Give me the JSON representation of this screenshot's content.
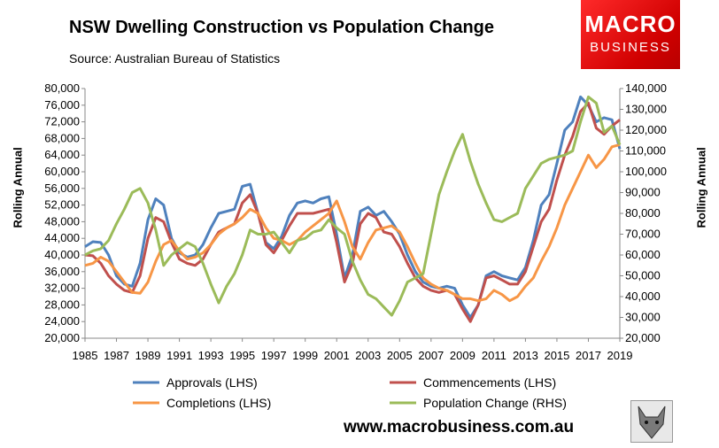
{
  "header": {
    "title": "NSW Dwelling Construction vs Population Change",
    "subtitle": "Source: Australian Bureau of Statistics",
    "logo_line1": "MACRO",
    "logo_line2": "BUSINESS",
    "url": "www.macrobusiness.com.au"
  },
  "chart_data": {
    "type": "line",
    "ylabel_left": "Rolling Annual",
    "ylabel_right": "Rolling Annual",
    "ylim_left": [
      20000,
      80000
    ],
    "ylim_right": [
      20000,
      140000
    ],
    "xlim": [
      1985,
      2019
    ],
    "yticks_left": [
      "80,000",
      "76,000",
      "72,000",
      "68,000",
      "64,000",
      "60,000",
      "56,000",
      "52,000",
      "48,000",
      "44,000",
      "40,000",
      "36,000",
      "32,000",
      "28,000",
      "24,000",
      "20,000"
    ],
    "yticks_right": [
      "140,000",
      "130,000",
      "120,000",
      "110,000",
      "100,000",
      "90,000",
      "80,000",
      "70,000",
      "60,000",
      "50,000",
      "40,000",
      "30,000",
      "20,000"
    ],
    "xticks": [
      "1985",
      "1987",
      "1989",
      "1991",
      "1993",
      "1995",
      "1997",
      "1999",
      "2001",
      "2003",
      "2005",
      "2007",
      "2009",
      "2011",
      "2013",
      "2015",
      "2017",
      "2019"
    ],
    "grid": false,
    "legend_position": "bottom",
    "series": [
      {
        "name": "Approvals (LHS)",
        "axis": "left",
        "color": "#4f81bd",
        "points": [
          [
            1985,
            42000
          ],
          [
            1985.5,
            43200
          ],
          [
            1986,
            43000
          ],
          [
            1986.5,
            40000
          ],
          [
            1987,
            35000
          ],
          [
            1987.5,
            33000
          ],
          [
            1988,
            32500
          ],
          [
            1988.5,
            38000
          ],
          [
            1989,
            48500
          ],
          [
            1989.5,
            53500
          ],
          [
            1990,
            52000
          ],
          [
            1990.5,
            44000
          ],
          [
            1991,
            40500
          ],
          [
            1991.5,
            39500
          ],
          [
            1992,
            40000
          ],
          [
            1992.5,
            42500
          ],
          [
            1993,
            46500
          ],
          [
            1993.5,
            50000
          ],
          [
            1994,
            50500
          ],
          [
            1994.5,
            51000
          ],
          [
            1995,
            56500
          ],
          [
            1995.5,
            57000
          ],
          [
            1996,
            50000
          ],
          [
            1996.5,
            43000
          ],
          [
            1997,
            41500
          ],
          [
            1997.5,
            44500
          ],
          [
            1998,
            49500
          ],
          [
            1998.5,
            52500
          ],
          [
            1999,
            53000
          ],
          [
            1999.5,
            52500
          ],
          [
            2000,
            53500
          ],
          [
            2000.5,
            54000
          ],
          [
            2001,
            45000
          ],
          [
            2001.5,
            34500
          ],
          [
            2002,
            40000
          ],
          [
            2002.5,
            50500
          ],
          [
            2003,
            51500
          ],
          [
            2003.5,
            49500
          ],
          [
            2004,
            50500
          ],
          [
            2004.5,
            48000
          ],
          [
            2005,
            45000
          ],
          [
            2005.5,
            40000
          ],
          [
            2006,
            36000
          ],
          [
            2006.5,
            33500
          ],
          [
            2007,
            32500
          ],
          [
            2007.5,
            32000
          ],
          [
            2008,
            32500
          ],
          [
            2008.5,
            32000
          ],
          [
            2009,
            28000
          ],
          [
            2009.5,
            25000
          ],
          [
            2010,
            28000
          ],
          [
            2010.5,
            35000
          ],
          [
            2011,
            36000
          ],
          [
            2011.5,
            35000
          ],
          [
            2012,
            34500
          ],
          [
            2012.5,
            34000
          ],
          [
            2013,
            37000
          ],
          [
            2013.5,
            43500
          ],
          [
            2014,
            52000
          ],
          [
            2014.5,
            54500
          ],
          [
            2015,
            62000
          ],
          [
            2015.5,
            70000
          ],
          [
            2016,
            72000
          ],
          [
            2016.5,
            78000
          ],
          [
            2017,
            76000
          ],
          [
            2017.5,
            72000
          ],
          [
            2018,
            73000
          ],
          [
            2018.5,
            72500
          ],
          [
            2019,
            65500
          ]
        ]
      },
      {
        "name": "Commencements (LHS)",
        "axis": "left",
        "color": "#c0504d",
        "points": [
          [
            1985,
            40000
          ],
          [
            1985.5,
            39800
          ],
          [
            1986,
            38000
          ],
          [
            1986.5,
            35000
          ],
          [
            1987,
            33000
          ],
          [
            1987.5,
            31500
          ],
          [
            1988,
            31000
          ],
          [
            1988.5,
            35000
          ],
          [
            1989,
            44000
          ],
          [
            1989.5,
            49000
          ],
          [
            1990,
            48000
          ],
          [
            1990.5,
            43000
          ],
          [
            1991,
            39000
          ],
          [
            1991.5,
            38000
          ],
          [
            1992,
            37500
          ],
          [
            1992.5,
            39000
          ],
          [
            1993,
            42500
          ],
          [
            1993.5,
            45500
          ],
          [
            1994,
            46500
          ],
          [
            1994.5,
            47500
          ],
          [
            1995,
            52500
          ],
          [
            1995.5,
            54500
          ],
          [
            1996,
            50000
          ],
          [
            1996.5,
            42500
          ],
          [
            1997,
            40500
          ],
          [
            1997.5,
            43500
          ],
          [
            1998,
            47000
          ],
          [
            1998.5,
            50000
          ],
          [
            1999,
            50000
          ],
          [
            1999.5,
            50000
          ],
          [
            2000,
            50500
          ],
          [
            2000.5,
            51000
          ],
          [
            2001,
            43000
          ],
          [
            2001.5,
            33500
          ],
          [
            2002,
            38000
          ],
          [
            2002.5,
            47500
          ],
          [
            2003,
            50000
          ],
          [
            2003.5,
            49000
          ],
          [
            2004,
            45500
          ],
          [
            2004.5,
            45000
          ],
          [
            2005,
            42000
          ],
          [
            2005.5,
            38000
          ],
          [
            2006,
            34500
          ],
          [
            2006.5,
            32500
          ],
          [
            2007,
            31500
          ],
          [
            2007.5,
            31000
          ],
          [
            2008,
            31500
          ],
          [
            2008.5,
            30500
          ],
          [
            2009,
            27000
          ],
          [
            2009.5,
            24000
          ],
          [
            2010,
            28000
          ],
          [
            2010.5,
            34500
          ],
          [
            2011,
            35000
          ],
          [
            2011.5,
            34000
          ],
          [
            2012,
            33000
          ],
          [
            2012.5,
            33000
          ],
          [
            2013,
            36000
          ],
          [
            2013.5,
            42000
          ],
          [
            2014,
            48000
          ],
          [
            2014.5,
            51000
          ],
          [
            2015,
            58000
          ],
          [
            2015.5,
            64000
          ],
          [
            2016,
            68500
          ],
          [
            2016.5,
            74500
          ],
          [
            2017,
            76500
          ],
          [
            2017.5,
            70500
          ],
          [
            2018,
            69000
          ],
          [
            2018.5,
            71000
          ],
          [
            2019,
            72500
          ]
        ]
      },
      {
        "name": "Completions (LHS)",
        "axis": "left",
        "color": "#f79646",
        "points": [
          [
            1985,
            37500
          ],
          [
            1985.5,
            38000
          ],
          [
            1986,
            39500
          ],
          [
            1986.5,
            38500
          ],
          [
            1987,
            36000
          ],
          [
            1987.5,
            33500
          ],
          [
            1988,
            31000
          ],
          [
            1988.5,
            30800
          ],
          [
            1989,
            33500
          ],
          [
            1989.5,
            38500
          ],
          [
            1990,
            42500
          ],
          [
            1990.5,
            43500
          ],
          [
            1991,
            41000
          ],
          [
            1991.5,
            39000
          ],
          [
            1992,
            39500
          ],
          [
            1992.5,
            40500
          ],
          [
            1993,
            42500
          ],
          [
            1993.5,
            45000
          ],
          [
            1994,
            46500
          ],
          [
            1994.5,
            47500
          ],
          [
            1995,
            49000
          ],
          [
            1995.5,
            51000
          ],
          [
            1996,
            50000
          ],
          [
            1996.5,
            46500
          ],
          [
            1997,
            44000
          ],
          [
            1997.5,
            43500
          ],
          [
            1998,
            42500
          ],
          [
            1998.5,
            43500
          ],
          [
            1999,
            45500
          ],
          [
            1999.5,
            47000
          ],
          [
            2000,
            48500
          ],
          [
            2000.5,
            50000
          ],
          [
            2001,
            53000
          ],
          [
            2001.5,
            48000
          ],
          [
            2002,
            42000
          ],
          [
            2002.5,
            39000
          ],
          [
            2003,
            43000
          ],
          [
            2003.5,
            46000
          ],
          [
            2004,
            46500
          ],
          [
            2004.5,
            47000
          ],
          [
            2005,
            45500
          ],
          [
            2005.5,
            42000
          ],
          [
            2006,
            38000
          ],
          [
            2006.5,
            34500
          ],
          [
            2007,
            33000
          ],
          [
            2007.5,
            32000
          ],
          [
            2008,
            31500
          ],
          [
            2008.5,
            30500
          ],
          [
            2009,
            29500
          ],
          [
            2009.5,
            29500
          ],
          [
            2010,
            29000
          ],
          [
            2010.5,
            29500
          ],
          [
            2011,
            31500
          ],
          [
            2011.5,
            30500
          ],
          [
            2012,
            29000
          ],
          [
            2012.5,
            30000
          ],
          [
            2013,
            32500
          ],
          [
            2013.5,
            34500
          ],
          [
            2014,
            38500
          ],
          [
            2014.5,
            42000
          ],
          [
            2015,
            46500
          ],
          [
            2015.5,
            52000
          ],
          [
            2016,
            56000
          ],
          [
            2016.5,
            60000
          ],
          [
            2017,
            64000
          ],
          [
            2017.5,
            61000
          ],
          [
            2018,
            63000
          ],
          [
            2018.5,
            66000
          ],
          [
            2019,
            66500
          ]
        ]
      },
      {
        "name": "Population Change (RHS)",
        "axis": "right",
        "color": "#9bbb59",
        "points": [
          [
            1985,
            60000
          ],
          [
            1985.5,
            62000
          ],
          [
            1986,
            63000
          ],
          [
            1986.5,
            67000
          ],
          [
            1987,
            75000
          ],
          [
            1987.5,
            82000
          ],
          [
            1988,
            90000
          ],
          [
            1988.5,
            92000
          ],
          [
            1989,
            85000
          ],
          [
            1989.5,
            72000
          ],
          [
            1990,
            55000
          ],
          [
            1990.5,
            60000
          ],
          [
            1991,
            63000
          ],
          [
            1991.5,
            66000
          ],
          [
            1992,
            64000
          ],
          [
            1992.5,
            56000
          ],
          [
            1993,
            46000
          ],
          [
            1993.5,
            37000
          ],
          [
            1994,
            45000
          ],
          [
            1994.5,
            51000
          ],
          [
            1995,
            60000
          ],
          [
            1995.5,
            72000
          ],
          [
            1996,
            70000
          ],
          [
            1996.5,
            70000
          ],
          [
            1997,
            71000
          ],
          [
            1997.5,
            66000
          ],
          [
            1998,
            61000
          ],
          [
            1998.5,
            67000
          ],
          [
            1999,
            68000
          ],
          [
            1999.5,
            71000
          ],
          [
            2000,
            72000
          ],
          [
            2000.5,
            77000
          ],
          [
            2001,
            73000
          ],
          [
            2001.5,
            70000
          ],
          [
            2002,
            57000
          ],
          [
            2002.5,
            48000
          ],
          [
            2003,
            41000
          ],
          [
            2003.5,
            39000
          ],
          [
            2004,
            35000
          ],
          [
            2004.5,
            31000
          ],
          [
            2005,
            38000
          ],
          [
            2005.5,
            47000
          ],
          [
            2006,
            49000
          ],
          [
            2006.5,
            51000
          ],
          [
            2007,
            70000
          ],
          [
            2007.5,
            89000
          ],
          [
            2008,
            100000
          ],
          [
            2008.5,
            110000
          ],
          [
            2009,
            118000
          ],
          [
            2009.5,
            105000
          ],
          [
            2010,
            94000
          ],
          [
            2010.5,
            85000
          ],
          [
            2011,
            77000
          ],
          [
            2011.5,
            76000
          ],
          [
            2012,
            78000
          ],
          [
            2012.5,
            80000
          ],
          [
            2013,
            92000
          ],
          [
            2013.5,
            98000
          ],
          [
            2014,
            104000
          ],
          [
            2014.5,
            106000
          ],
          [
            2015,
            107000
          ],
          [
            2015.5,
            108000
          ],
          [
            2016,
            110000
          ],
          [
            2016.5,
            124000
          ],
          [
            2017,
            136000
          ],
          [
            2017.5,
            133000
          ],
          [
            2018,
            119000
          ],
          [
            2018.5,
            122000
          ],
          [
            2019,
            113000
          ]
        ]
      }
    ]
  }
}
